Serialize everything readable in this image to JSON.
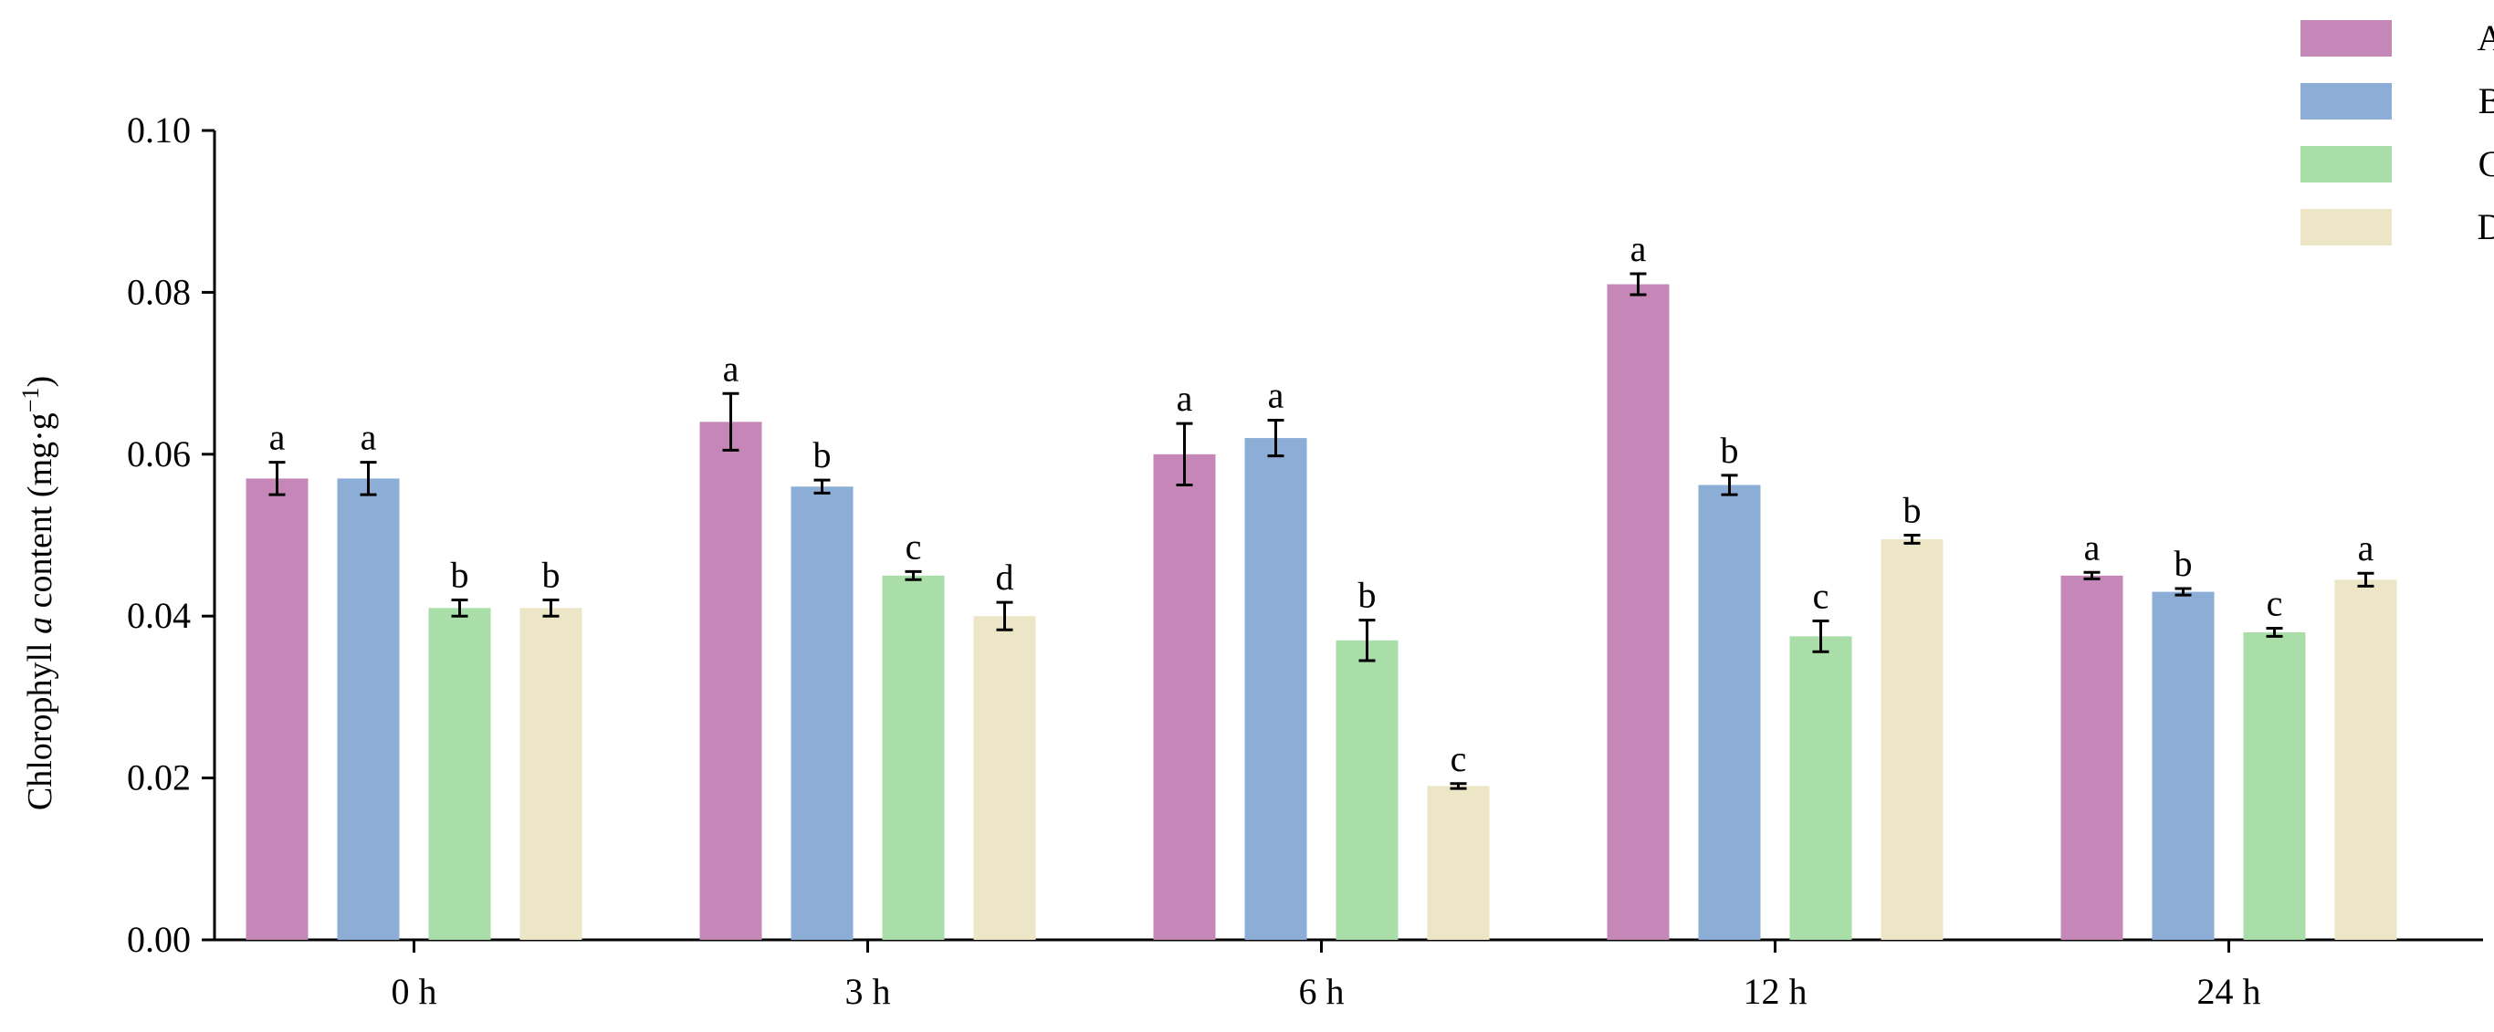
{
  "chart_data": {
    "type": "bar",
    "categories": [
      "0 h",
      "3 h",
      "6 h",
      "12 h",
      "24 h"
    ],
    "series": [
      {
        "name": "A",
        "color": "#c487b8",
        "values": [
          0.057,
          0.064,
          0.06,
          0.081,
          0.045
        ],
        "errors": [
          0.002,
          0.0035,
          0.0038,
          0.0013,
          0.0004
        ],
        "letters": [
          "a",
          "a",
          "a",
          "a",
          "a"
        ]
      },
      {
        "name": "B",
        "color": "#8badd6",
        "values": [
          0.057,
          0.056,
          0.062,
          0.0562,
          0.043
        ],
        "errors": [
          0.002,
          0.0008,
          0.0022,
          0.0012,
          0.0004
        ],
        "letters": [
          "a",
          "b",
          "a",
          "b",
          "b"
        ]
      },
      {
        "name": "C",
        "color": "#a9dea9",
        "values": [
          0.041,
          0.045,
          0.037,
          0.0375,
          0.038
        ],
        "errors": [
          0.001,
          0.0005,
          0.0025,
          0.0019,
          0.0005
        ],
        "letters": [
          "b",
          "c",
          "b",
          "c",
          "c"
        ]
      },
      {
        "name": "D",
        "color": "#ede6c6",
        "values": [
          0.041,
          0.04,
          0.019,
          0.0495,
          0.0445
        ],
        "errors": [
          0.001,
          0.0017,
          0.0003,
          0.0005,
          0.0008
        ],
        "letters": [
          "b",
          "d",
          "c",
          "b",
          "a"
        ]
      }
    ],
    "ylabel_prefix": "Chlorophyll ",
    "ylabel_italic": "a",
    "ylabel_suffix": " content (mg·g",
    "ylabel_sup": "−1",
    "ylabel_end": ")",
    "ylim": [
      0,
      0.1
    ],
    "yticks": [
      "0.00",
      "0.02",
      "0.04",
      "0.06",
      "0.08",
      "0.10"
    ],
    "grid": false,
    "legend_position": "top-right"
  }
}
